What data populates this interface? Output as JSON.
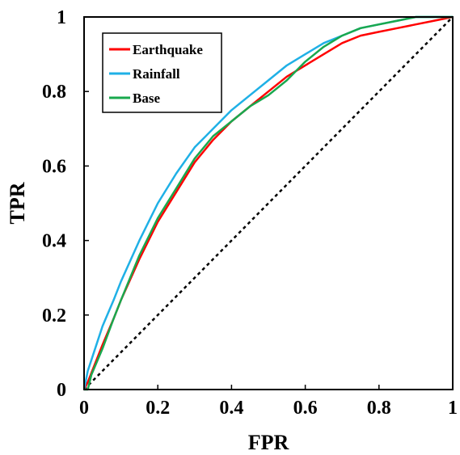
{
  "chart_data": {
    "type": "line",
    "title": "",
    "xlabel": "FPR",
    "ylabel": "TPR",
    "xlim": [
      0,
      1
    ],
    "ylim": [
      0,
      1
    ],
    "x_ticks": [
      "0",
      "0.2",
      "0.4",
      "0.6",
      "0.8",
      "1"
    ],
    "y_ticks": [
      "0",
      "0.2",
      "0.4",
      "0.6",
      "0.8",
      "1"
    ],
    "grid": false,
    "legend_position": "top-left",
    "series": [
      {
        "name": "Earthquake",
        "color": "#ff0000",
        "x": [
          0.0,
          0.01,
          0.03,
          0.05,
          0.08,
          0.1,
          0.15,
          0.2,
          0.25,
          0.3,
          0.35,
          0.4,
          0.45,
          0.5,
          0.55,
          0.6,
          0.65,
          0.7,
          0.75,
          0.8,
          0.85,
          0.9,
          0.95,
          1.0
        ],
        "y": [
          0.0,
          0.02,
          0.07,
          0.12,
          0.19,
          0.24,
          0.35,
          0.45,
          0.53,
          0.61,
          0.67,
          0.72,
          0.76,
          0.8,
          0.84,
          0.87,
          0.9,
          0.93,
          0.95,
          0.96,
          0.97,
          0.98,
          0.99,
          1.0
        ]
      },
      {
        "name": "Rainfall",
        "color": "#1fb0e6",
        "x": [
          0.0,
          0.01,
          0.03,
          0.05,
          0.08,
          0.1,
          0.15,
          0.2,
          0.25,
          0.3,
          0.35,
          0.4,
          0.45,
          0.5,
          0.55,
          0.6,
          0.65,
          0.7,
          0.75,
          0.8,
          0.85,
          0.9,
          0.95,
          1.0
        ],
        "y": [
          0.0,
          0.05,
          0.11,
          0.17,
          0.24,
          0.29,
          0.4,
          0.5,
          0.58,
          0.65,
          0.7,
          0.75,
          0.79,
          0.83,
          0.87,
          0.9,
          0.93,
          0.95,
          0.97,
          0.98,
          0.99,
          1.0,
          1.0,
          1.0
        ]
      },
      {
        "name": "Base",
        "color": "#19a84e",
        "x": [
          0.0,
          0.01,
          0.02,
          0.05,
          0.08,
          0.1,
          0.15,
          0.2,
          0.25,
          0.3,
          0.35,
          0.4,
          0.45,
          0.5,
          0.55,
          0.6,
          0.65,
          0.7,
          0.75,
          0.8,
          0.85,
          0.9,
          0.95,
          1.0
        ],
        "y": [
          0.0,
          0.0,
          0.04,
          0.11,
          0.19,
          0.24,
          0.36,
          0.46,
          0.54,
          0.62,
          0.68,
          0.72,
          0.76,
          0.79,
          0.83,
          0.88,
          0.92,
          0.95,
          0.97,
          0.98,
          0.99,
          1.0,
          1.0,
          1.0
        ]
      }
    ],
    "reference_line": {
      "x": [
        0,
        1
      ],
      "y": [
        0,
        1
      ],
      "style": "dotted",
      "color": "#000000"
    }
  }
}
